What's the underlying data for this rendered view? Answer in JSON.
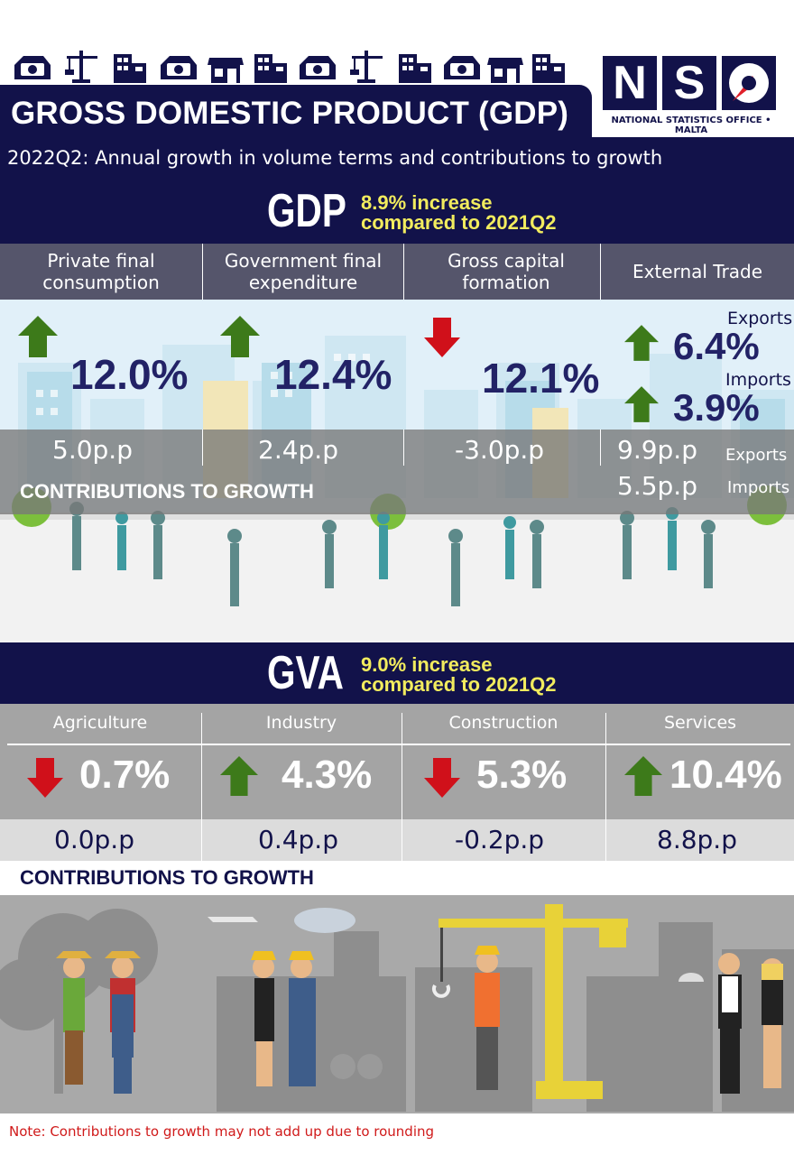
{
  "header": {
    "title": "GROSS DOMESTIC PRODUCT (GDP)",
    "subtitle": "2022Q2: Annual growth in volume terms and contributions to growth",
    "logo": {
      "letters": [
        "N",
        "S"
      ],
      "caption": "NATIONAL STATISTICS OFFICE • MALTA"
    },
    "strip_icons": [
      "money-icon",
      "crane-icon",
      "building-icon",
      "money-icon",
      "shop-icon",
      "building-icon",
      "money-icon",
      "crane-icon",
      "building-icon",
      "money-icon",
      "shop-icon",
      "building-icon"
    ]
  },
  "gdp": {
    "acronym": "GDP",
    "increase_line1": "8.9% increase",
    "increase_line2": "compared to 2021Q2",
    "columns": [
      {
        "label_line1": "Private final",
        "label_line2": "consumption",
        "direction": "up",
        "growth": "12.0%",
        "contribution": "5.0p.p"
      },
      {
        "label_line1": "Government final",
        "label_line2": "expenditure",
        "direction": "up",
        "growth": "12.4%",
        "contribution": "2.4p.p"
      },
      {
        "label_line1": "Gross capital",
        "label_line2": "formation",
        "direction": "down",
        "growth": "12.1%",
        "contribution": "-3.0p.p"
      }
    ],
    "external_trade": {
      "label": "External Trade",
      "exports_label": "Exports",
      "exports_growth": "6.4%",
      "imports_label": "Imports",
      "imports_growth": "3.9%",
      "exports_contribution": "9.9p.p",
      "imports_contribution": "5.5p.p",
      "exports_contrib_label": "Exports",
      "imports_contrib_label": "Imports"
    },
    "contributions_title": "CONTRIBUTIONS TO GROWTH"
  },
  "gva": {
    "acronym": "GVA",
    "increase_line1": "9.0% increase",
    "increase_line2": "compared to 2021Q2",
    "columns": [
      {
        "label": "Agriculture",
        "direction": "down",
        "growth": "0.7%",
        "contribution": "0.0p.p"
      },
      {
        "label": "Industry",
        "direction": "up",
        "growth": "4.3%",
        "contribution": "0.4p.p"
      },
      {
        "label": "Construction",
        "direction": "down",
        "growth": "5.3%",
        "contribution": "-0.2p.p"
      },
      {
        "label": "Services",
        "direction": "up",
        "growth": "10.4%",
        "contribution": "8.8p.p"
      }
    ],
    "contributions_title": "CONTRIBUTIONS TO GROWTH"
  },
  "note": "Note: Contributions to growth may not add up due to rounding",
  "colors": {
    "navy": "#12124a",
    "yellow": "#f2ec5e",
    "up_green": "#3d7a1a",
    "down_red": "#d0101a",
    "note_red": "#d01a1a",
    "logo_red": "#e0202a"
  }
}
